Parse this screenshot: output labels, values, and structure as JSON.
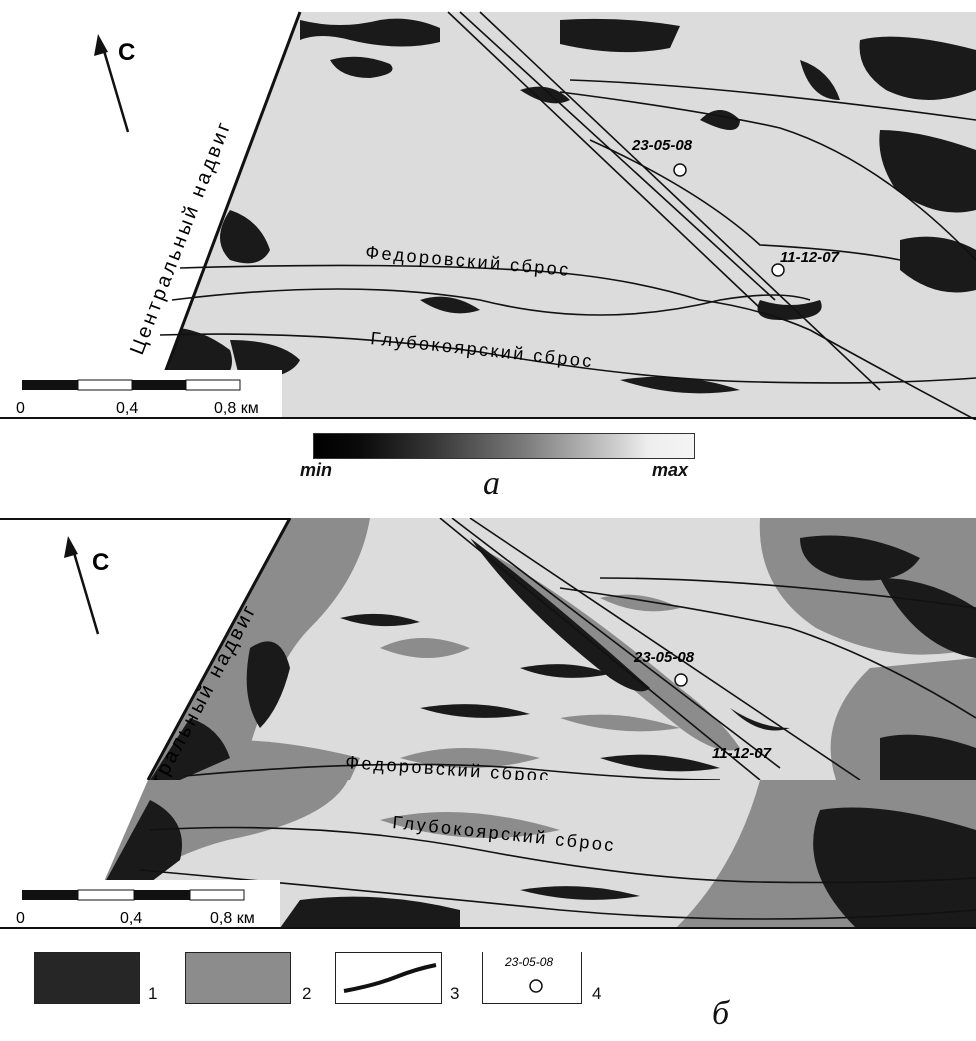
{
  "north_label": "С",
  "panel_a": {
    "letter": "а",
    "thrust_label": "Центральный надвиг",
    "fault1_label": "Федоровский сброс",
    "fault2_label": "Глубокоярский сброс",
    "point1_label": "23-05-08",
    "point2_label": "11-12-07",
    "scale_labels": [
      "0",
      "0,4",
      "0,8 км"
    ],
    "gradient_min": "min",
    "gradient_max": "max"
  },
  "panel_b": {
    "letter": "б",
    "thrust_label": "Центральный надвиг",
    "fault1_label": "Федоровский сброс",
    "fault2_label": "Глубокоярский сброс",
    "point1_label": "23-05-08",
    "point2_label": "11-12-07",
    "scale_labels": [
      "0",
      "0,4",
      "0,8 км"
    ]
  },
  "legend": [
    {
      "number": "1",
      "swatch": "#262626"
    },
    {
      "number": "2",
      "swatch": "#8c8c8c"
    },
    {
      "number": "3",
      "symbol": "fault-line"
    },
    {
      "number": "4",
      "symbol": "point-circle",
      "sample_label": "23-05-08"
    }
  ],
  "colors": {
    "background": "#dcdcdc",
    "dark": "#1a1a1a",
    "gray": "#8c8c8c"
  }
}
